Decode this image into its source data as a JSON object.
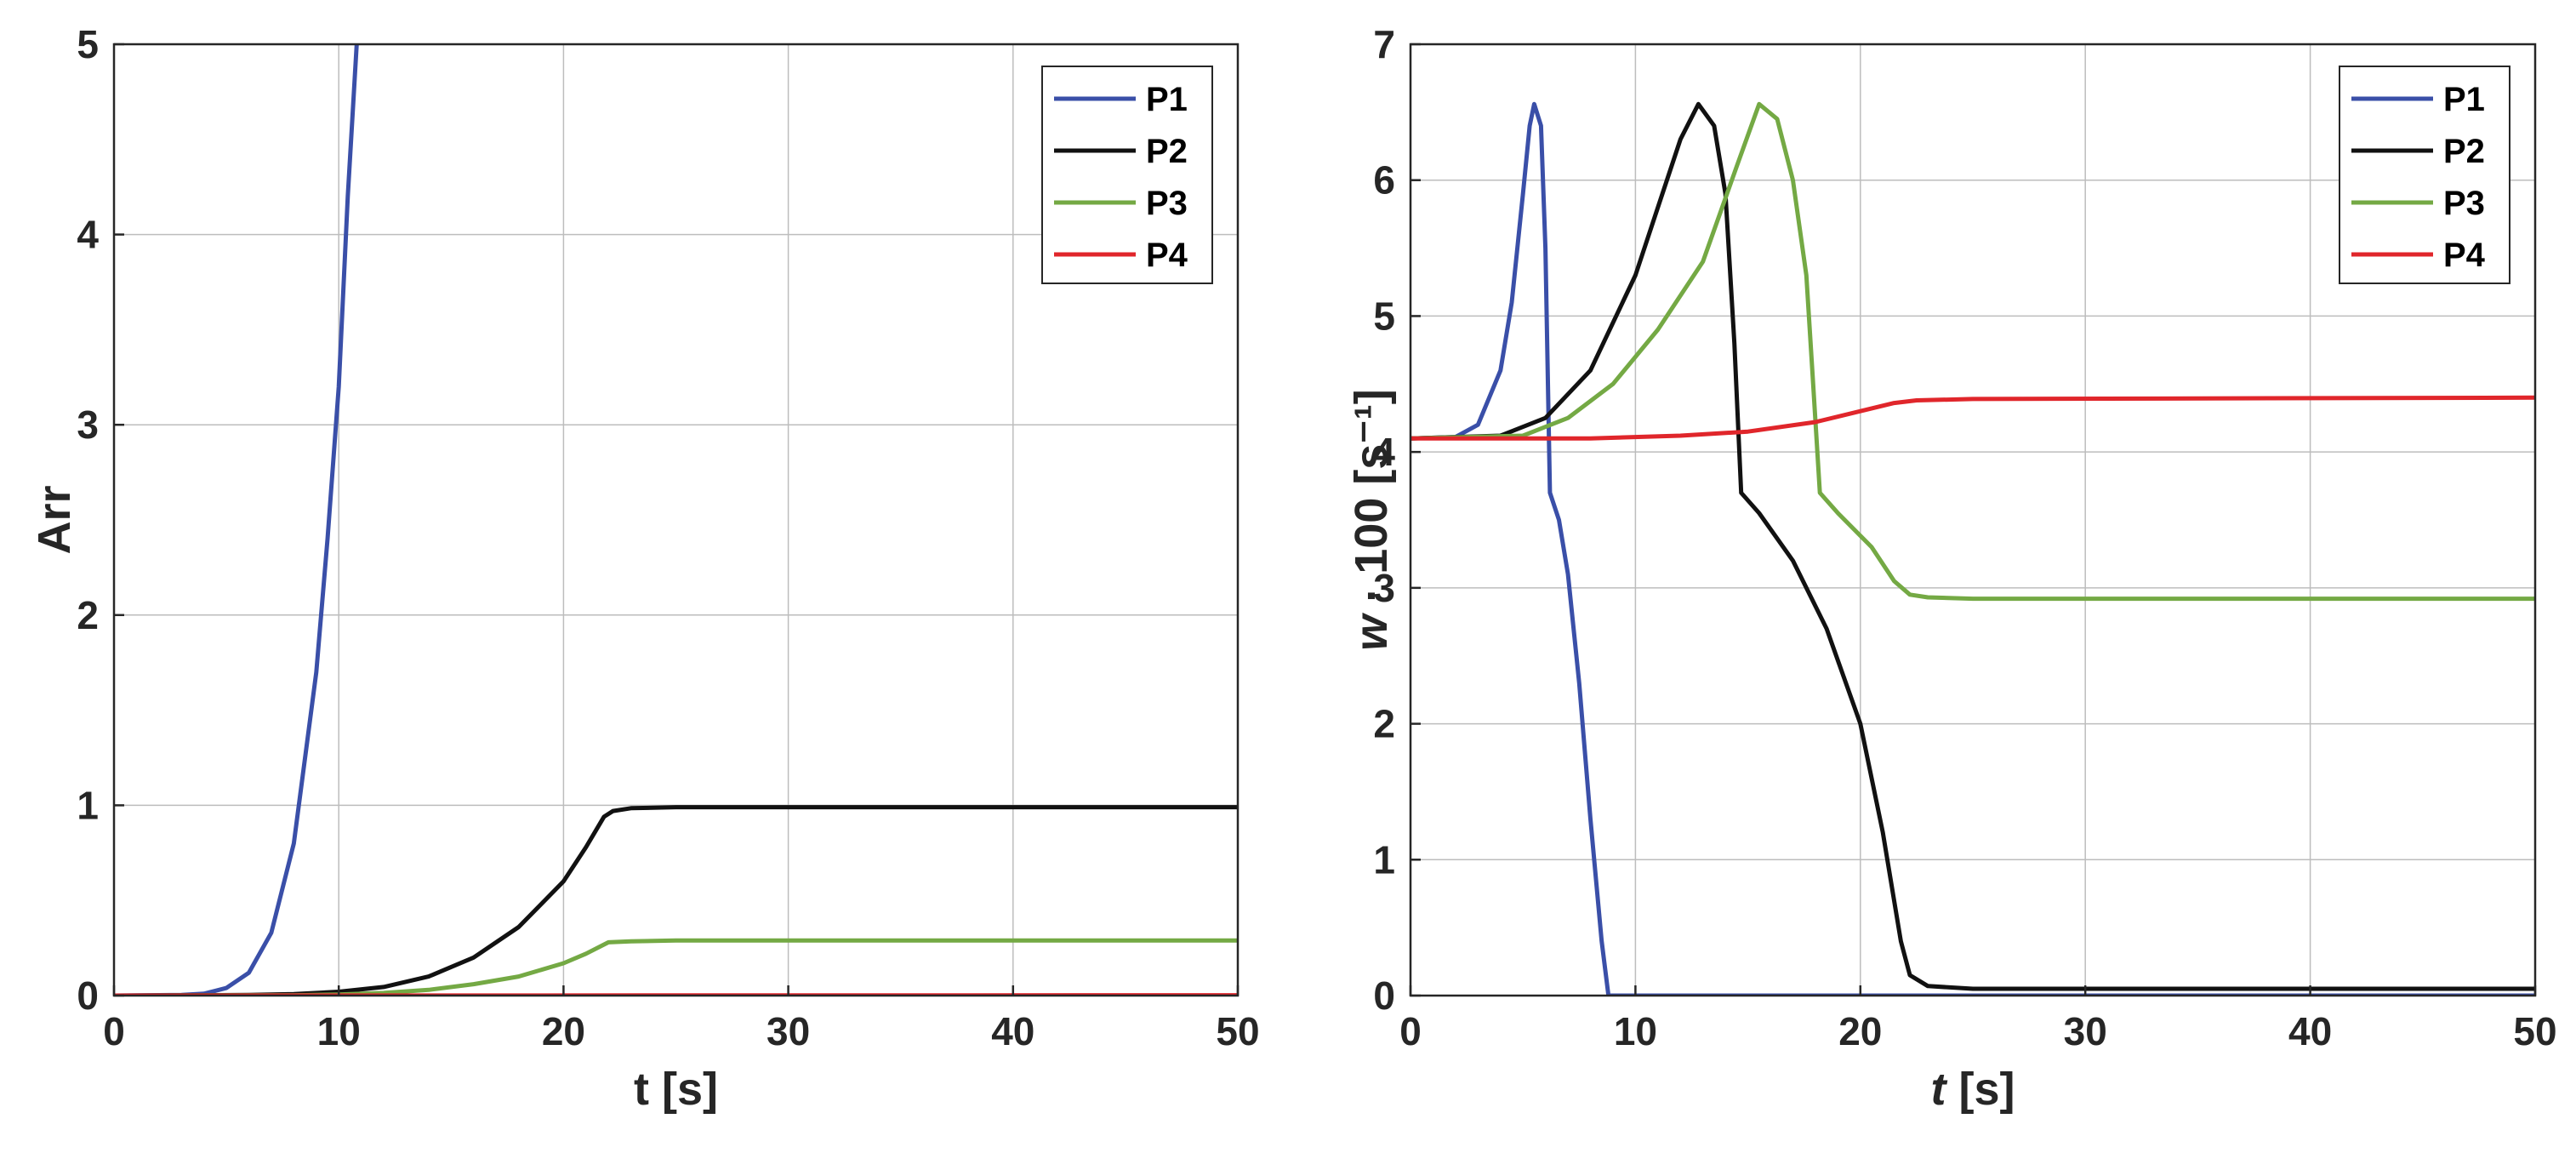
{
  "chart_data": [
    {
      "type": "line",
      "xlabel": "t [s]",
      "ylabel": "Arr",
      "xlim": [
        0,
        50
      ],
      "ylim": [
        0,
        5
      ],
      "xticks": [
        0,
        10,
        20,
        30,
        40,
        50
      ],
      "yticks": [
        0,
        1,
        2,
        3,
        4,
        5
      ],
      "grid": true,
      "legend": "top-right",
      "series": [
        {
          "name": "P1",
          "color": "#3a4fa8",
          "points": [
            [
              0,
              0
            ],
            [
              3,
              0.003
            ],
            [
              4,
              0.01
            ],
            [
              5,
              0.04
            ],
            [
              6,
              0.12
            ],
            [
              7,
              0.33
            ],
            [
              8,
              0.8
            ],
            [
              9,
              1.7
            ],
            [
              9.5,
              2.4
            ],
            [
              10,
              3.2
            ],
            [
              10.4,
              4.2
            ],
            [
              10.8,
              5.0
            ]
          ]
        },
        {
          "name": "P2",
          "color": "#111111",
          "points": [
            [
              0,
              0
            ],
            [
              6,
              0.003
            ],
            [
              8,
              0.008
            ],
            [
              10,
              0.02
            ],
            [
              12,
              0.045
            ],
            [
              14,
              0.1
            ],
            [
              16,
              0.2
            ],
            [
              18,
              0.36
            ],
            [
              20,
              0.6
            ],
            [
              21,
              0.78
            ],
            [
              21.8,
              0.94
            ],
            [
              22.2,
              0.97
            ],
            [
              23,
              0.985
            ],
            [
              25,
              0.99
            ],
            [
              50,
              0.99
            ]
          ]
        },
        {
          "name": "P3",
          "color": "#74a944",
          "points": [
            [
              0,
              0
            ],
            [
              8,
              0.002
            ],
            [
              10,
              0.006
            ],
            [
              12,
              0.014
            ],
            [
              14,
              0.03
            ],
            [
              16,
              0.06
            ],
            [
              18,
              0.1
            ],
            [
              20,
              0.17
            ],
            [
              21,
              0.22
            ],
            [
              22,
              0.28
            ],
            [
              23,
              0.285
            ],
            [
              25,
              0.29
            ],
            [
              50,
              0.29
            ]
          ]
        },
        {
          "name": "P4",
          "color": "#e0262b",
          "points": [
            [
              0,
              0
            ],
            [
              50,
              0.002
            ]
          ]
        }
      ]
    },
    {
      "type": "line",
      "xlabel": "t [s]",
      "ylabel": "w · 100 [s⁻¹]",
      "xlim": [
        0,
        50
      ],
      "ylim": [
        0,
        7
      ],
      "xticks": [
        0,
        10,
        20,
        30,
        40,
        50
      ],
      "yticks": [
        0,
        1,
        2,
        3,
        4,
        5,
        6,
        7
      ],
      "grid": true,
      "legend": "top-right",
      "series": [
        {
          "name": "P1",
          "color": "#3a4fa8",
          "points": [
            [
              0,
              4.1
            ],
            [
              2,
              4.11
            ],
            [
              3,
              4.2
            ],
            [
              4,
              4.6
            ],
            [
              4.5,
              5.1
            ],
            [
              5,
              5.9
            ],
            [
              5.3,
              6.4
            ],
            [
              5.5,
              6.56
            ],
            [
              5.8,
              6.4
            ],
            [
              6,
              5.5
            ],
            [
              6.2,
              3.7
            ],
            [
              6.6,
              3.5
            ],
            [
              7,
              3.1
            ],
            [
              7.5,
              2.3
            ],
            [
              8,
              1.3
            ],
            [
              8.5,
              0.4
            ],
            [
              8.8,
              0
            ],
            [
              50,
              0
            ]
          ]
        },
        {
          "name": "P2",
          "color": "#111111",
          "points": [
            [
              0,
              4.1
            ],
            [
              4,
              4.12
            ],
            [
              6,
              4.25
            ],
            [
              8,
              4.6
            ],
            [
              10,
              5.3
            ],
            [
              11,
              5.8
            ],
            [
              12,
              6.3
            ],
            [
              12.8,
              6.56
            ],
            [
              13.5,
              6.4
            ],
            [
              14,
              5.9
            ],
            [
              14.4,
              4.8
            ],
            [
              14.7,
              3.7
            ],
            [
              15.5,
              3.55
            ],
            [
              17,
              3.2
            ],
            [
              18.5,
              2.7
            ],
            [
              20,
              2.0
            ],
            [
              21,
              1.2
            ],
            [
              21.8,
              0.4
            ],
            [
              22.2,
              0.15
            ],
            [
              23,
              0.07
            ],
            [
              25,
              0.05
            ],
            [
              50,
              0.05
            ]
          ]
        },
        {
          "name": "P3",
          "color": "#74a944",
          "points": [
            [
              0,
              4.1
            ],
            [
              5,
              4.12
            ],
            [
              7,
              4.25
            ],
            [
              9,
              4.5
            ],
            [
              11,
              4.9
            ],
            [
              13,
              5.4
            ],
            [
              14.5,
              6.1
            ],
            [
              15.5,
              6.56
            ],
            [
              16.3,
              6.45
            ],
            [
              17,
              6.0
            ],
            [
              17.6,
              5.3
            ],
            [
              17.9,
              4.5
            ],
            [
              18.2,
              3.7
            ],
            [
              19,
              3.55
            ],
            [
              20.5,
              3.3
            ],
            [
              21.5,
              3.05
            ],
            [
              22.2,
              2.95
            ],
            [
              23,
              2.93
            ],
            [
              25,
              2.92
            ],
            [
              50,
              2.92
            ]
          ]
        },
        {
          "name": "P4",
          "color": "#e0262b",
          "points": [
            [
              0,
              4.1
            ],
            [
              8,
              4.1
            ],
            [
              12,
              4.12
            ],
            [
              15,
              4.15
            ],
            [
              18,
              4.22
            ],
            [
              20,
              4.3
            ],
            [
              21.5,
              4.36
            ],
            [
              22.5,
              4.38
            ],
            [
              25,
              4.39
            ],
            [
              50,
              4.4
            ]
          ]
        }
      ]
    }
  ]
}
